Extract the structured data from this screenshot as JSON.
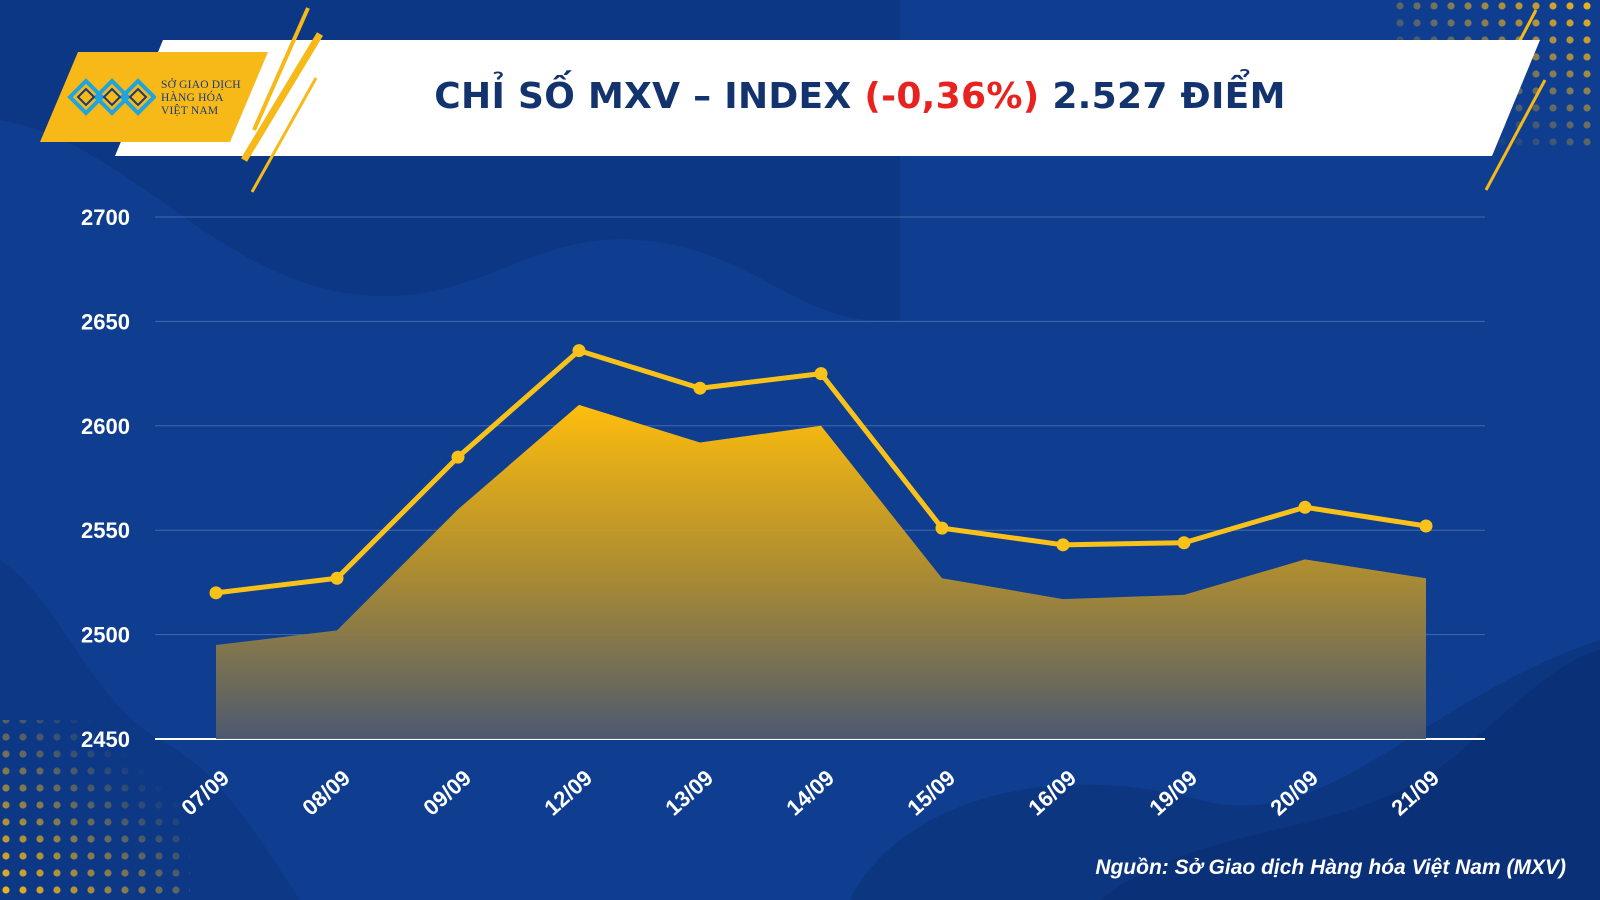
{
  "header": {
    "logo_line1": "SỞ GIAO DỊCH",
    "logo_line2": "HÀNG HÓA",
    "logo_line3": "VIỆT NAM",
    "title_main": "CHỈ SỐ MXV – INDEX ",
    "title_change": "(-0,36%)",
    "title_value": " 2.527 ĐIỂM"
  },
  "colors": {
    "background": "#0f3d8f",
    "accent": "#f7b917",
    "title_text": "#13336f",
    "negative": "#e8231f",
    "line": "#f9c21a"
  },
  "icons": {
    "logo": "mxv-logo-icon"
  },
  "chart_data": {
    "type": "line",
    "categories": [
      "07/09",
      "08/09",
      "09/09",
      "12/09",
      "13/09",
      "14/09",
      "15/09",
      "16/09",
      "19/09",
      "20/09",
      "21/09"
    ],
    "series": [
      {
        "values": [
          2520,
          2527,
          2585,
          2636,
          2618,
          2625,
          2551,
          2543,
          2544,
          2561,
          2552
        ]
      },
      {
        "values": [
          2495,
          2502,
          2560,
          2610,
          2592,
          2600,
          2527,
          2517,
          2519,
          2536,
          2527
        ]
      }
    ],
    "ylim": [
      2450,
      2700
    ],
    "yticks": [
      2450,
      2500,
      2550,
      2600,
      2650,
      2700
    ],
    "grid": true
  },
  "footer": {
    "source": "Nguồn: Sở Giao dịch Hàng hóa Việt Nam (MXV)"
  }
}
